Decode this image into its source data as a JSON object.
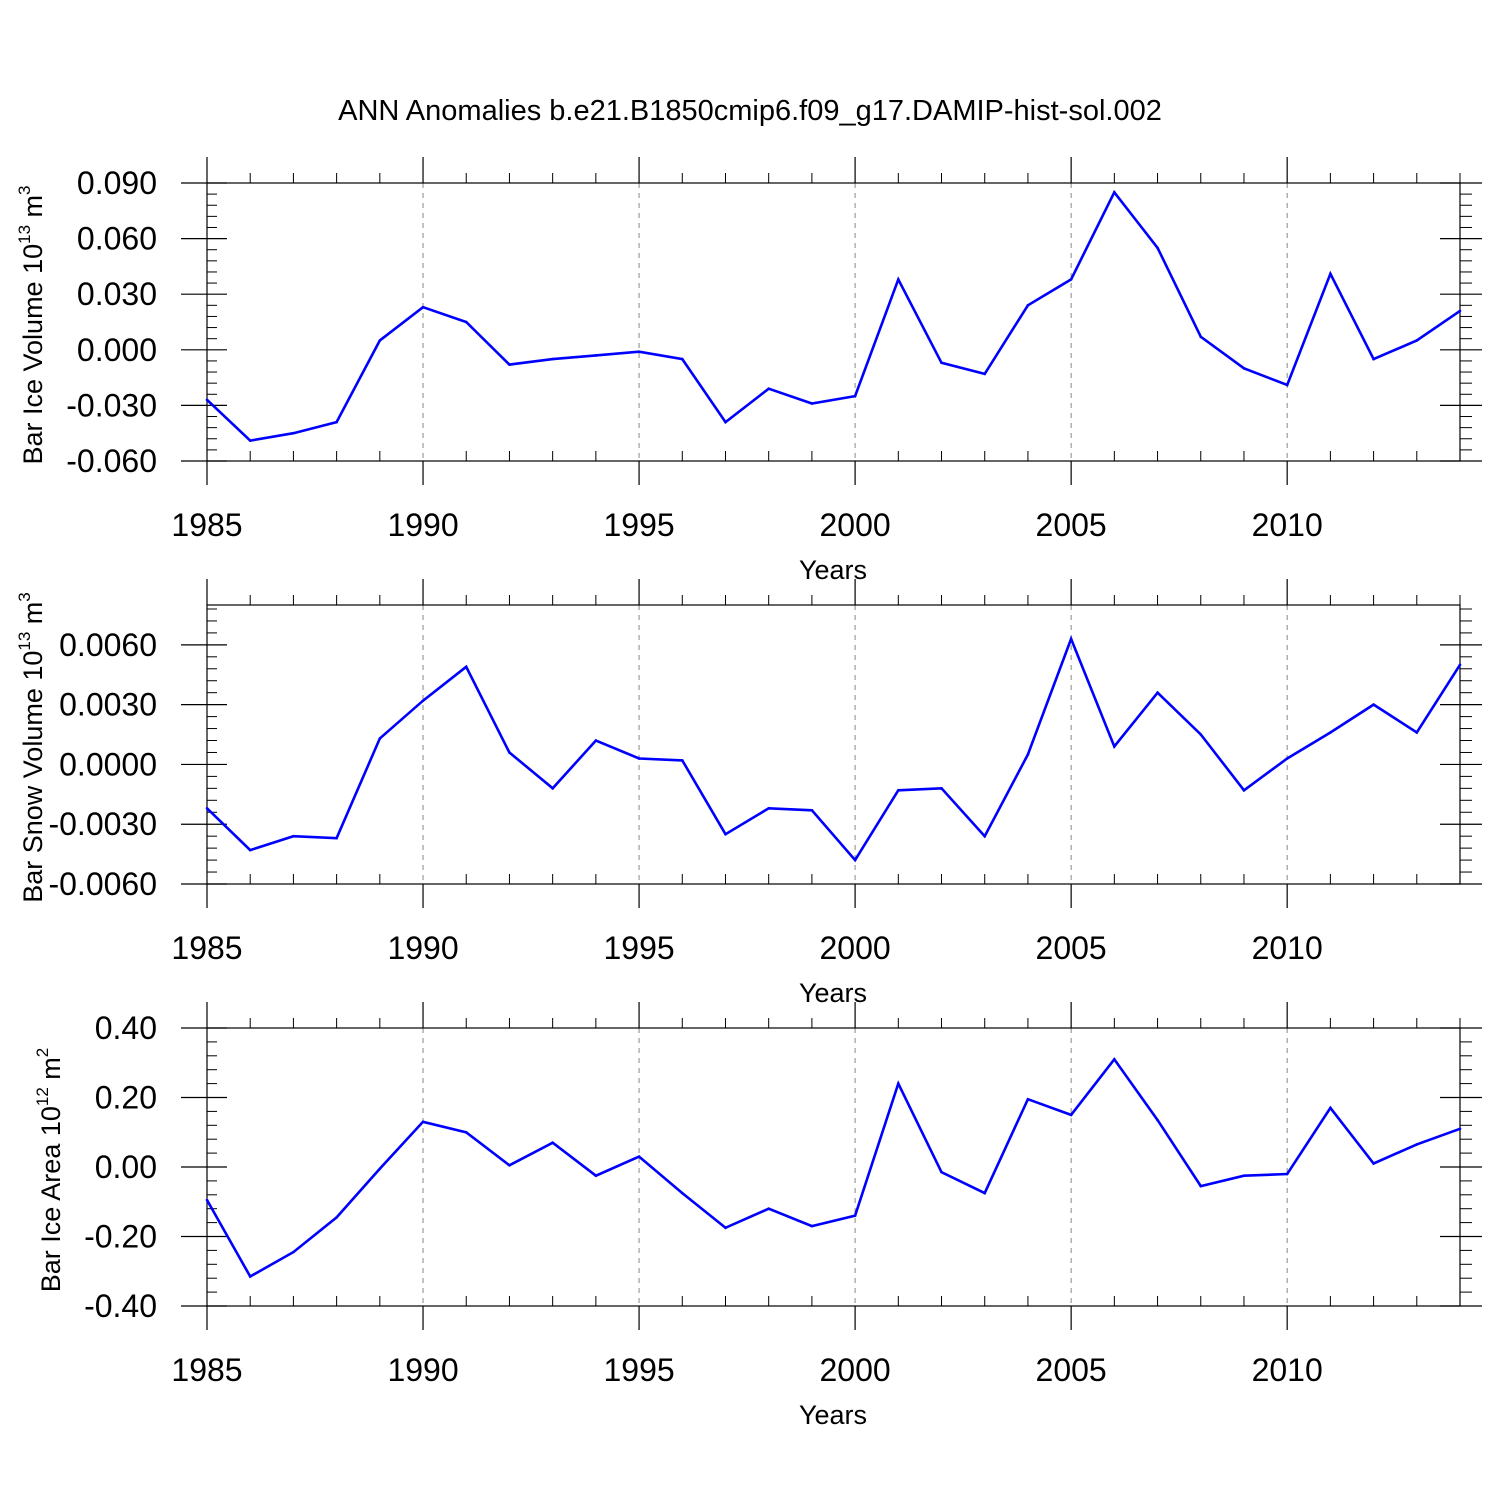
{
  "title": "ANN Anomalies b.e21.B1850cmip6.f09_g17.DAMIP-hist-sol.002",
  "chart_data": [
    {
      "type": "line",
      "xlabel": "Years",
      "ylabel": "Bar Ice Volume",
      "ylabel_unit_base": "10",
      "ylabel_unit_exp": "13",
      "ylabel_unit": "m",
      "ylabel_unit_unit_exp": "3",
      "xlim": [
        1985,
        2014
      ],
      "ylim": [
        -0.06,
        0.09
      ],
      "x_ticks": [
        "1985",
        "1990",
        "1995",
        "2000",
        "2005",
        "2010"
      ],
      "y_ticks": [
        "0.090",
        "0.060",
        "0.030",
        "0.000",
        "-0.030",
        "-0.060"
      ],
      "y_tick_values": [
        0.09,
        0.06,
        0.03,
        0.0,
        -0.03,
        -0.06
      ],
      "grid": "dashed vertical at major x ticks",
      "color": "#0000ff",
      "x": [
        1985,
        1986,
        1987,
        1988,
        1989,
        1990,
        1991,
        1992,
        1993,
        1994,
        1995,
        1996,
        1997,
        1998,
        1999,
        2000,
        2001,
        2002,
        2003,
        2004,
        2005,
        2006,
        2007,
        2008,
        2009,
        2010,
        2011,
        2012,
        2013,
        2014
      ],
      "values": [
        -0.027,
        -0.049,
        -0.045,
        -0.039,
        0.005,
        0.023,
        0.015,
        -0.008,
        -0.005,
        -0.003,
        -0.001,
        -0.005,
        -0.039,
        -0.021,
        -0.029,
        -0.025,
        0.038,
        -0.007,
        -0.013,
        0.024,
        0.038,
        0.085,
        0.055,
        0.007,
        -0.01,
        -0.019,
        0.041,
        -0.005,
        0.005,
        0.021
      ]
    },
    {
      "type": "line",
      "xlabel": "Years",
      "ylabel": "Bar Snow Volume",
      "ylabel_unit_base": "10",
      "ylabel_unit_exp": "13",
      "ylabel_unit": "m",
      "ylabel_unit_unit_exp": "3",
      "xlim": [
        1985,
        2014
      ],
      "ylim": [
        -0.006,
        0.008
      ],
      "x_ticks": [
        "1985",
        "1990",
        "1995",
        "2000",
        "2005",
        "2010"
      ],
      "y_ticks": [
        "0.0060",
        "0.0030",
        "0.0000",
        "-0.0030",
        "-0.0060"
      ],
      "y_tick_values": [
        0.006,
        0.003,
        0.0,
        -0.003,
        -0.006
      ],
      "grid": "dashed vertical at major x ticks",
      "color": "#0000ff",
      "x": [
        1985,
        1986,
        1987,
        1988,
        1989,
        1990,
        1991,
        1992,
        1993,
        1994,
        1995,
        1996,
        1997,
        1998,
        1999,
        2000,
        2001,
        2002,
        2003,
        2004,
        2005,
        2006,
        2007,
        2008,
        2009,
        2010,
        2011,
        2012,
        2013,
        2014
      ],
      "values": [
        -0.0022,
        -0.0043,
        -0.0036,
        -0.0037,
        0.0013,
        0.0032,
        0.0049,
        0.0006,
        -0.0012,
        0.0012,
        0.0003,
        0.0002,
        -0.0035,
        -0.0022,
        -0.0023,
        -0.0048,
        -0.0013,
        -0.0012,
        -0.0036,
        0.0005,
        0.0063,
        0.0009,
        0.0036,
        0.0015,
        -0.0013,
        0.0003,
        0.0016,
        0.003,
        0.0016,
        0.005
      ]
    },
    {
      "type": "line",
      "xlabel": "Years",
      "ylabel": "Bar Ice Area",
      "ylabel_unit_base": "10",
      "ylabel_unit_exp": "12",
      "ylabel_unit": "m",
      "ylabel_unit_unit_exp": "2",
      "xlim": [
        1985,
        2014
      ],
      "ylim": [
        -0.4,
        0.4
      ],
      "x_ticks": [
        "1985",
        "1990",
        "1995",
        "2000",
        "2005",
        "2010"
      ],
      "y_ticks": [
        "0.40",
        "0.20",
        "0.00",
        "-0.20",
        "-0.40"
      ],
      "y_tick_values": [
        0.4,
        0.2,
        0.0,
        -0.2,
        -0.4
      ],
      "grid": "dashed vertical at major x ticks",
      "color": "#0000ff",
      "x": [
        1985,
        1986,
        1987,
        1988,
        1989,
        1990,
        1991,
        1992,
        1993,
        1994,
        1995,
        1996,
        1997,
        1998,
        1999,
        2000,
        2001,
        2002,
        2003,
        2004,
        2005,
        2006,
        2007,
        2008,
        2009,
        2010,
        2011,
        2012,
        2013,
        2014
      ],
      "values": [
        -0.095,
        -0.315,
        -0.245,
        -0.145,
        -0.005,
        0.13,
        0.1,
        0.005,
        0.07,
        -0.025,
        0.03,
        -0.075,
        -0.175,
        -0.12,
        -0.17,
        -0.14,
        0.24,
        -0.015,
        -0.075,
        0.195,
        0.15,
        0.31,
        0.135,
        -0.055,
        -0.025,
        -0.02,
        0.17,
        0.01,
        0.065,
        0.11
      ]
    }
  ]
}
